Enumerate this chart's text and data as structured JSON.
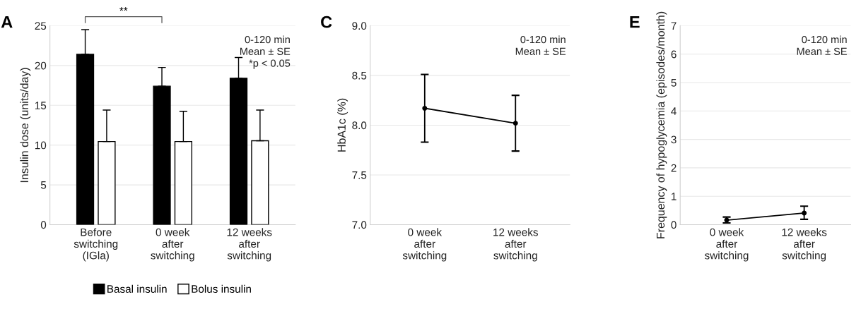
{
  "chart_data": [
    {
      "type": "bar",
      "title": "A",
      "ylabel": "Insulin dose (units/day)",
      "categories": [
        "Before\nswitching\n(IGla)",
        "0 week\nafter\nswitching",
        "12 weeks\nafter\nswitching"
      ],
      "series": [
        {
          "name": "Basal insulin",
          "color": "#000000",
          "values": [
            21.4,
            17.4,
            18.4
          ],
          "errors": [
            [
              21.4,
              24.5
            ],
            [
              17.4,
              19.75
            ],
            [
              18.4,
              21.0
            ]
          ]
        },
        {
          "name": "Bolus insulin",
          "color": "#ffffff",
          "values": [
            10.45,
            10.45,
            10.55
          ],
          "errors": [
            [
              10.45,
              14.4
            ],
            [
              10.45,
              14.25
            ],
            [
              10.55,
              14.4
            ]
          ]
        }
      ],
      "ylim": [
        0,
        25
      ],
      "yticks": [
        0,
        5,
        10,
        15,
        20,
        25
      ],
      "grid": "y",
      "legend": "bottom",
      "annotations": [
        "**",
        "0-120 min\nMean ± SE\n*p < 0.05"
      ]
    },
    {
      "type": "line",
      "title": "C",
      "ylabel": "HbA1c (%)",
      "categories": [
        "0 week\nafter\nswitching",
        "12 weeks\nafter\nswitching"
      ],
      "series": [
        {
          "color": "#000000",
          "values": [
            8.17,
            8.02
          ],
          "errors": [
            [
              7.83,
              8.51
            ],
            [
              7.74,
              8.3
            ]
          ]
        }
      ],
      "ylim": [
        7.0,
        9.0
      ],
      "yticks": [
        {
          "value": 7.0,
          "label": "7.0"
        },
        {
          "value": 7.5,
          "label": "7.5"
        },
        {
          "value": 8.0,
          "label": "8.0"
        },
        {
          "value": 8.5,
          "label": "8.5"
        },
        {
          "value": 9.0,
          "label": "9.0"
        }
      ],
      "grid": "y",
      "marker": "circle",
      "line_style": "solid",
      "annotations": [
        "0-120 min\nMean ± SE"
      ]
    },
    {
      "type": "line",
      "title": "E",
      "ylabel": "Frequency of hypoglycemia (episodes/month)",
      "categories": [
        "0 week\nafter\nswitching",
        "12 weeks\nafter\nswitching"
      ],
      "series": [
        {
          "color": "#000000",
          "values": [
            0.16,
            0.41
          ],
          "errors": [
            [
              0.06,
              0.27
            ],
            [
              0.19,
              0.65
            ]
          ]
        }
      ],
      "ylim": [
        0,
        7
      ],
      "yticks": [
        0,
        1,
        2,
        3,
        4,
        5,
        6,
        7
      ],
      "grid": "y",
      "marker": "circle",
      "line_style": "solid",
      "annotations": [
        "0-120 min\nMean ± SE"
      ]
    }
  ]
}
